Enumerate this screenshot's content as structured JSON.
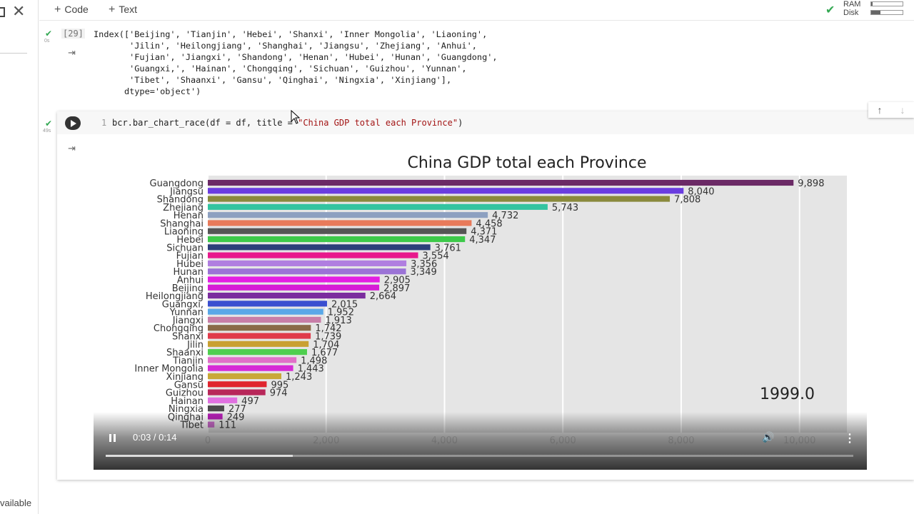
{
  "sidebar": {
    "footer_text": "vailable"
  },
  "toolbar": {
    "code_label": "Code",
    "text_label": "Text",
    "ram_label": "RAM",
    "disk_label": "Disk",
    "ram_fraction": 0.05,
    "disk_fraction": 0.3
  },
  "output_cell": {
    "exec_count": "[29]",
    "exec_time": "0s",
    "lines": [
      "Index(['Beijing', 'Tianjin', 'Hebei', 'Shanxi', 'Inner Mongolia', 'Liaoning',",
      "       'Jilin', 'Heilongjiang', 'Shanghai', 'Jiangsu', 'Zhejiang', 'Anhui',",
      "       'Fujian', 'Jiangxi', 'Shandong', 'Henan', 'Hubei', 'Hunan', 'Guangdong',",
      "       'Guangxi,', 'Hainan', 'Chongqing', 'Sichuan', 'Guizhou', 'Yunnan',",
      "       'Tibet', 'Shaanxi', 'Gansu', 'Qinghai', 'Ningxia', 'Xinjiang'],",
      "      dtype='object')"
    ]
  },
  "code_cell": {
    "line_number": "1",
    "code_prefix": "bcr.bar_chart_race(df = df, title = ",
    "code_string": "\"China GDP total each Province\"",
    "code_suffix": ")",
    "exec_time": "49s"
  },
  "video": {
    "time_label": "0:03 / 0:14",
    "progress_fraction": 0.25
  },
  "chart_data": {
    "type": "bar",
    "title": "China GDP total each Province",
    "period_label": "1999.0",
    "xlim": [
      0,
      10800
    ],
    "xticks": [
      "0",
      "2,000",
      "4,000",
      "6,000",
      "8,000",
      "10,000"
    ],
    "xtick_values": [
      0,
      2000,
      4000,
      6000,
      8000,
      10000
    ],
    "grid": true,
    "bars": [
      {
        "name": "Guangdong",
        "value": 9898,
        "label": "9,898",
        "color": "#6b2a66"
      },
      {
        "name": "Jiangsu",
        "value": 8040,
        "label": "8,040",
        "color": "#6a3de0"
      },
      {
        "name": "Shandong",
        "value": 7808,
        "label": "7,808",
        "color": "#8a8a3c"
      },
      {
        "name": "Zhejiang",
        "value": 5743,
        "label": "5,743",
        "color": "#33c4a0"
      },
      {
        "name": "Henan",
        "value": 4732,
        "label": "4,732",
        "color": "#8da0c0"
      },
      {
        "name": "Shanghai",
        "value": 4458,
        "label": "4,458",
        "color": "#e87a5a"
      },
      {
        "name": "Liaoning",
        "value": 4371,
        "label": "4,371",
        "color": "#555555"
      },
      {
        "name": "Hebei",
        "value": 4347,
        "label": "4,347",
        "color": "#3dc94a"
      },
      {
        "name": "Sichuan",
        "value": 3761,
        "label": "3,761",
        "color": "#2c3e7a"
      },
      {
        "name": "Fujian",
        "value": 3554,
        "label": "3,554",
        "color": "#e8198c"
      },
      {
        "name": "Hubei",
        "value": 3356,
        "label": "3,356",
        "color": "#b07ee0"
      },
      {
        "name": "Hunan",
        "value": 3349,
        "label": "3,349",
        "color": "#9b73d6"
      },
      {
        "name": "Anhui",
        "value": 2905,
        "label": "2,905",
        "color": "#e31ee3"
      },
      {
        "name": "Beijing",
        "value": 2897,
        "label": "2,897",
        "color": "#d61cd6"
      },
      {
        "name": "Heilongjiang",
        "value": 2664,
        "label": "2,664",
        "color": "#7b2d9e"
      },
      {
        "name": "Guangxi,",
        "value": 2015,
        "label": "2,015",
        "color": "#3a4fd0"
      },
      {
        "name": "Yunnan",
        "value": 1952,
        "label": "1,952",
        "color": "#5aa8e8"
      },
      {
        "name": "Jiangxi",
        "value": 1913,
        "label": "1,913",
        "color": "#c87ea8"
      },
      {
        "name": "Chongqing",
        "value": 1742,
        "label": "1,742",
        "color": "#8a6a48"
      },
      {
        "name": "Shanxi",
        "value": 1739,
        "label": "1,739",
        "color": "#e03a4a"
      },
      {
        "name": "Jilin",
        "value": 1704,
        "label": "1,704",
        "color": "#c9a032"
      },
      {
        "name": "Shaanxi",
        "value": 1677,
        "label": "1,677",
        "color": "#4fcf4f"
      },
      {
        "name": "Tianjin",
        "value": 1498,
        "label": "1,498",
        "color": "#e070c8"
      },
      {
        "name": "Inner Mongolia",
        "value": 1443,
        "label": "1,443",
        "color": "#d62ad6"
      },
      {
        "name": "Xinjiang",
        "value": 1243,
        "label": "1,243",
        "color": "#c9a838"
      },
      {
        "name": "Gansu",
        "value": 995,
        "label": "995",
        "color": "#e0242e"
      },
      {
        "name": "Guizhou",
        "value": 974,
        "label": "974",
        "color": "#b8275a"
      },
      {
        "name": "Hainan",
        "value": 497,
        "label": "497",
        "color": "#e070e0"
      },
      {
        "name": "Ningxia",
        "value": 277,
        "label": "277",
        "color": "#4a4a4a"
      },
      {
        "name": "Qinghai",
        "value": 249,
        "label": "249",
        "color": "#b21fb2"
      },
      {
        "name": "Tibet",
        "value": 111,
        "label": "111",
        "color": "#c86ac8"
      }
    ]
  }
}
